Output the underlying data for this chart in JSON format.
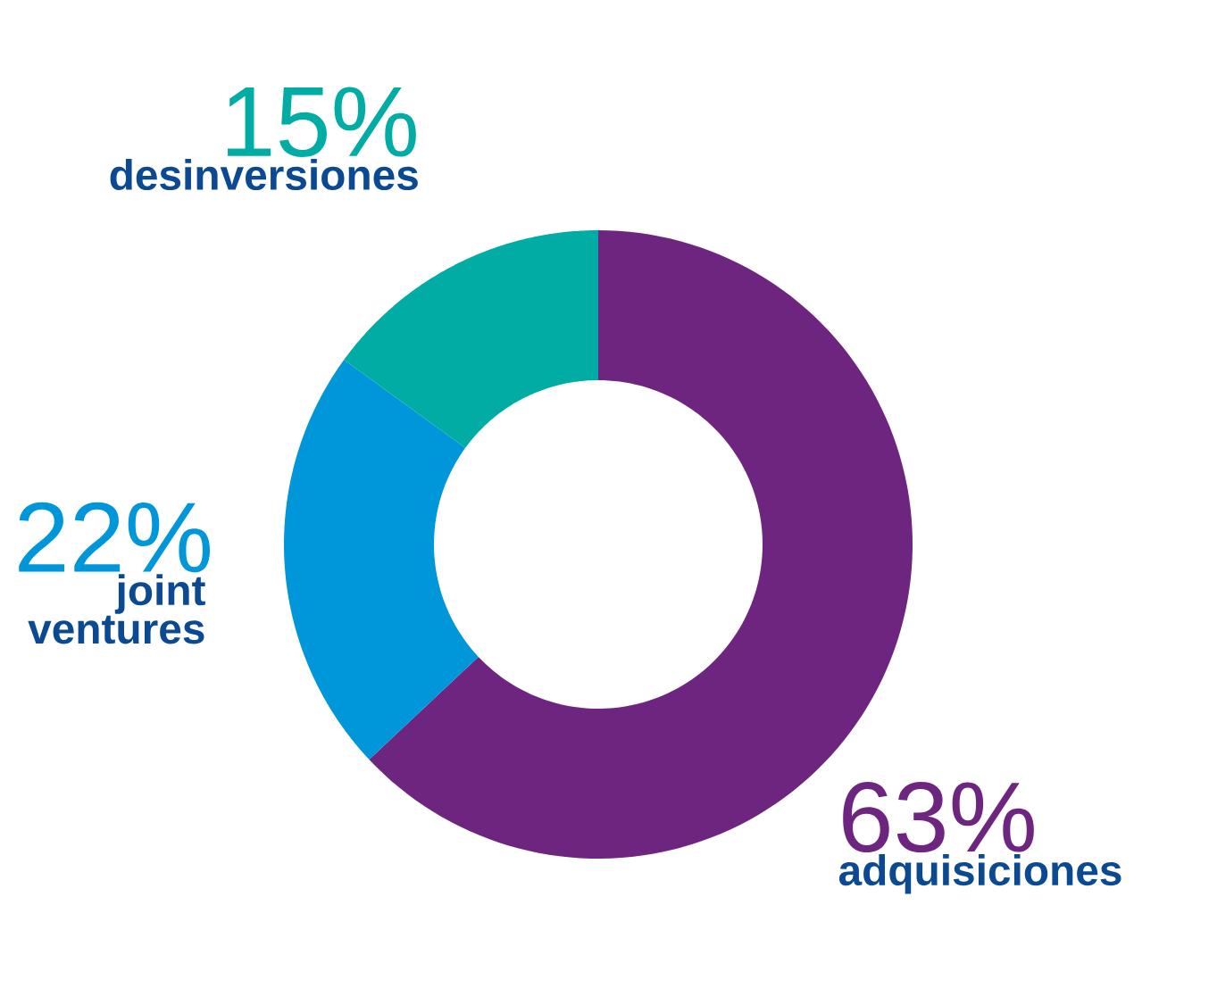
{
  "chart_data": {
    "type": "donut",
    "categories": [
      "adquisiciones",
      "joint ventures",
      "desinversiones"
    ],
    "values": [
      63,
      22,
      15
    ],
    "value_labels": [
      "63%",
      "22%",
      "15%"
    ],
    "colors": [
      "#6d2580",
      "#0096da",
      "#00aca4"
    ]
  }
}
